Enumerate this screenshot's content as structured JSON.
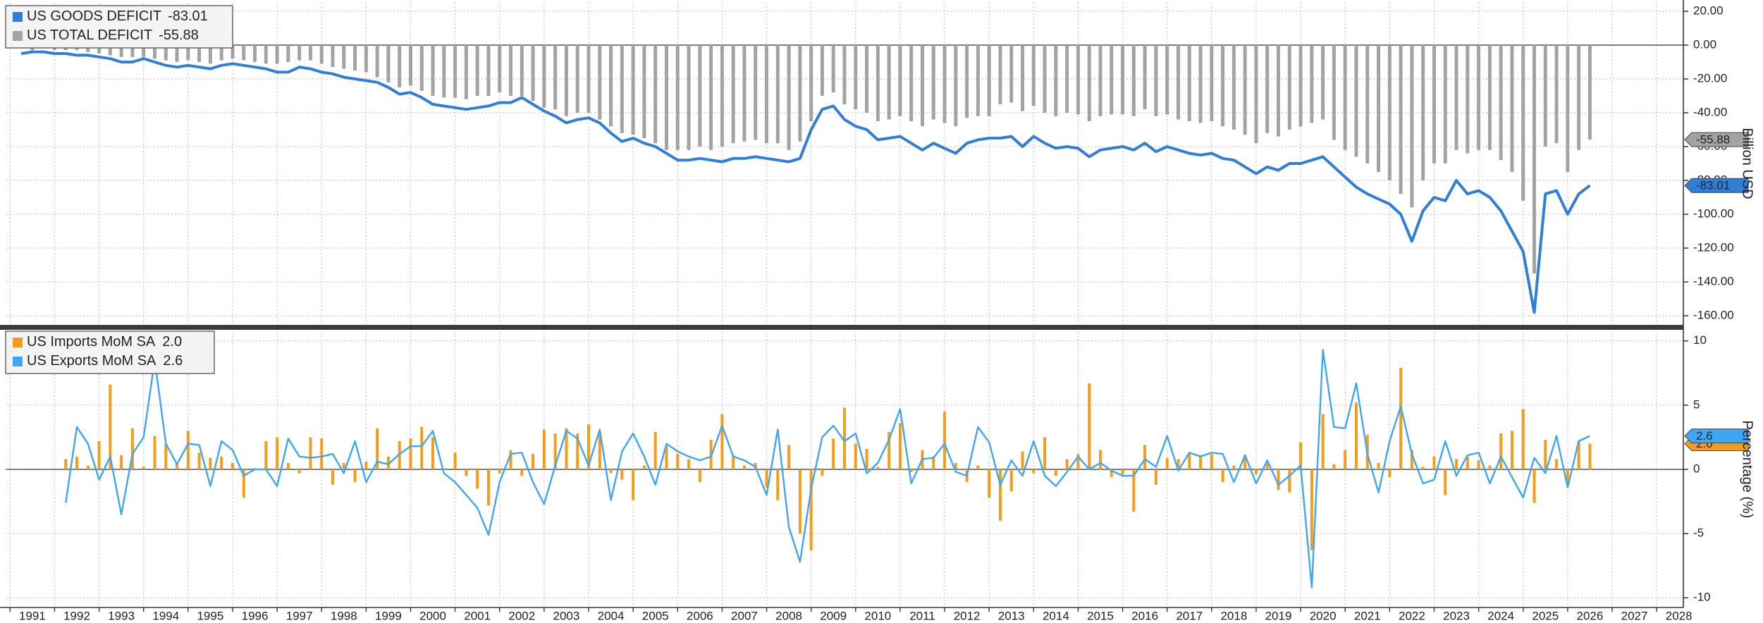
{
  "chart_data": [
    {
      "type": "combo",
      "ylabel": "Billion USD",
      "ylim": [
        -165,
        25
      ],
      "yticks": [
        {
          "value": 20,
          "label": "20.00"
        },
        {
          "value": 0,
          "label": "0.00"
        },
        {
          "value": -20,
          "label": "-20.00"
        },
        {
          "value": -40,
          "label": "-40.00"
        },
        {
          "value": -60,
          "label": "-60.00"
        },
        {
          "value": -80,
          "label": "-80.00"
        },
        {
          "value": -100,
          "label": "-100.00"
        },
        {
          "value": -120,
          "label": "-120.00"
        },
        {
          "value": -140,
          "label": "-140.00"
        },
        {
          "value": -160,
          "label": "-160.00"
        }
      ],
      "grid": true,
      "series": [
        {
          "name": "US TOTAL DEFICIT",
          "type": "bar",
          "color": "#a3a3a3",
          "values": [
            -2,
            -3,
            -2,
            -3,
            -3,
            -3,
            -4,
            -5,
            -6,
            -7,
            -7,
            -7,
            -8,
            -9,
            -10,
            -9,
            -10,
            -11,
            -9,
            -8,
            -9,
            -10,
            -11,
            -11,
            -10,
            -9,
            -9,
            -11,
            -13,
            -14,
            -15,
            -16,
            -19,
            -22,
            -25,
            -24,
            -27,
            -30,
            -31,
            -31,
            -32,
            -30,
            -30,
            -28,
            -30,
            -30,
            -33,
            -37,
            -38,
            -42,
            -40,
            -40,
            -44,
            -48,
            -52,
            -53,
            -55,
            -58,
            -62,
            -62,
            -62,
            -60,
            -62,
            -60,
            -58,
            -57,
            -56,
            -58,
            -58,
            -62,
            -57,
            -45,
            -30,
            -28,
            -35,
            -38,
            -40,
            -45,
            -44,
            -42,
            -45,
            -48,
            -44,
            -46,
            -48,
            -43,
            -42,
            -42,
            -35,
            -34,
            -39,
            -36,
            -40,
            -42,
            -40,
            -41,
            -45,
            -42,
            -41,
            -41,
            -42,
            -38,
            -42,
            -41,
            -44,
            -45,
            -46,
            -45,
            -48,
            -50,
            -53,
            -58,
            -52,
            -54,
            -50,
            -48,
            -46,
            -44,
            -56,
            -62,
            -66,
            -70,
            -75,
            -80,
            -88,
            -96,
            -80,
            -70,
            -70,
            -62,
            -64,
            -62,
            -62,
            -68,
            -75,
            -92,
            -135,
            -60,
            -58,
            -75,
            -62,
            -55.88
          ]
        },
        {
          "name": "US GOODS DEFICIT",
          "type": "line",
          "color": "#2f7fd6",
          "values": [
            -5,
            -4,
            -4,
            -5,
            -5,
            -6,
            -6,
            -7,
            -8,
            -10,
            -10,
            -8,
            -10,
            -12,
            -13,
            -12,
            -13,
            -14,
            -12,
            -11,
            -12,
            -13,
            -14,
            -16,
            -16,
            -13,
            -14,
            -16,
            -17,
            -19,
            -20,
            -21,
            -22,
            -25,
            -29,
            -28,
            -31,
            -35,
            -36,
            -37,
            -38,
            -37,
            -36,
            -34,
            -34,
            -31,
            -35,
            -39,
            -42,
            -46,
            -44,
            -43,
            -46,
            -52,
            -57,
            -55,
            -58,
            -60,
            -64,
            -68,
            -68,
            -67,
            -68,
            -69,
            -67,
            -67,
            -66,
            -67,
            -68,
            -69,
            -67,
            -50,
            -38,
            -36,
            -44,
            -48,
            -50,
            -56,
            -55,
            -54,
            -58,
            -62,
            -58,
            -61,
            -64,
            -58,
            -56,
            -55,
            -55,
            -54,
            -60,
            -54,
            -58,
            -61,
            -60,
            -61,
            -66,
            -62,
            -61,
            -60,
            -62,
            -58,
            -63,
            -60,
            -62,
            -64,
            -65,
            -64,
            -67,
            -68,
            -72,
            -76,
            -72,
            -74,
            -70,
            -70,
            -68,
            -66,
            -72,
            -78,
            -84,
            -88,
            -91,
            -94,
            -100,
            -116,
            -98,
            -90,
            -92,
            -80,
            -88,
            -86,
            -90,
            -98,
            -110,
            -122,
            -158,
            -88,
            -86,
            -100,
            -88,
            -83.01
          ]
        }
      ]
    },
    {
      "type": "combo",
      "ylabel": "Percentage (%)",
      "ylim": [
        -10.7,
        10.7
      ],
      "yticks": [
        10,
        5,
        0,
        -5,
        -10
      ],
      "grid": true,
      "xlim": [
        1990.9,
        2028.6
      ],
      "xticks": [
        1991,
        1992,
        1993,
        1994,
        1995,
        1996,
        1997,
        1998,
        1999,
        2000,
        2001,
        2002,
        2003,
        2004,
        2005,
        2006,
        2007,
        2008,
        2009,
        2010,
        2011,
        2012,
        2013,
        2014,
        2015,
        2016,
        2017,
        2018,
        2019,
        2020,
        2021,
        2022,
        2023,
        2024,
        2025,
        2026,
        2027,
        2028
      ],
      "x": [
        1991.25,
        1991.5,
        1991.75,
        1992,
        1992.25,
        1992.5,
        1992.75,
        1993,
        1993.25,
        1993.5,
        1993.75,
        1994,
        1994.25,
        1994.5,
        1994.75,
        1995,
        1995.25,
        1995.5,
        1995.75,
        1996,
        1996.25,
        1996.5,
        1996.75,
        1997,
        1997.25,
        1997.5,
        1997.75,
        1998,
        1998.25,
        1998.5,
        1998.75,
        1999,
        1999.25,
        1999.5,
        1999.75,
        2000,
        2000.25,
        2000.5,
        2000.75,
        2001,
        2001.25,
        2001.5,
        2001.75,
        2002,
        2002.25,
        2002.5,
        2002.75,
        2003,
        2003.25,
        2003.5,
        2003.75,
        2004,
        2004.25,
        2004.5,
        2004.75,
        2005,
        2005.25,
        2005.5,
        2005.75,
        2006,
        2006.25,
        2006.5,
        2006.75,
        2007,
        2007.25,
        2007.5,
        2007.75,
        2008,
        2008.25,
        2008.5,
        2008.75,
        2009,
        2009.25,
        2009.5,
        2009.75,
        2010,
        2010.25,
        2010.5,
        2010.75,
        2011,
        2011.25,
        2011.5,
        2011.75,
        2012,
        2012.25,
        2012.5,
        2012.75,
        2013,
        2013.25,
        2013.5,
        2013.75,
        2014,
        2014.25,
        2014.5,
        2014.75,
        2015,
        2015.25,
        2015.5,
        2015.75,
        2016,
        2016.25,
        2016.5,
        2016.75,
        2017,
        2017.25,
        2017.5,
        2017.75,
        2018,
        2018.25,
        2018.5,
        2018.75,
        2019,
        2019.25,
        2019.5,
        2019.75,
        2020,
        2020.25,
        2020.5,
        2020.75,
        2021,
        2021.25,
        2021.5,
        2021.75,
        2022,
        2022.25,
        2022.5,
        2022.75,
        2023,
        2023.25,
        2023.5,
        2023.75,
        2024,
        2024.25,
        2024.5,
        2024.75,
        2025,
        2025.25,
        2025.5,
        2025.75,
        2026,
        2026.25,
        2026.5
      ],
      "series": [
        {
          "name": "US Imports MoM SA",
          "type": "bar",
          "color": "#f59c1a",
          "values": [
            null,
            null,
            null,
            null,
            0.8,
            1.0,
            0.3,
            2.2,
            6.6,
            1.1,
            3.2,
            0.2,
            2.6,
            2.0,
            0.5,
            3.0,
            1.3,
            0.9,
            1.0,
            0.5,
            -2.2,
            0.1,
            2.2,
            2.5,
            0.5,
            -0.3,
            2.5,
            2.4,
            -1.2,
            0.5,
            -1.0,
            0.6,
            3.2,
            1.0,
            2.2,
            2.4,
            3.3,
            2.5,
            0.0,
            1.3,
            -0.5,
            -1.5,
            -2.8,
            -0.3,
            1.5,
            -0.5,
            1.2,
            3.1,
            2.8,
            3.2,
            2.8,
            3.5,
            2.8,
            -0.3,
            -0.8,
            -2.4,
            0.3,
            2.9,
            1.8,
            1.2,
            0.8,
            -1.0,
            2.3,
            4.3,
            1.1,
            0.3,
            0.5,
            -1.4,
            -2.4,
            1.9,
            -5.0,
            -6.3,
            -0.5,
            2.4,
            4.8,
            2.0,
            1.6,
            0.2,
            2.9,
            3.6,
            -0.2,
            1.5,
            1.0,
            4.5,
            0.5,
            -1.0,
            0.3,
            -2.2,
            -4.0,
            -1.7,
            1.4,
            -0.3,
            2.5,
            -0.5,
            0.8,
            1.2,
            6.7,
            1.5,
            -0.6,
            -0.4,
            -3.3,
            1.9,
            -1.2,
            0.9,
            0.8,
            1.2,
            1.1,
            1.2,
            -1.0,
            0.3,
            1.1,
            -0.4,
            0.5,
            -1.6,
            -1.8,
            2.1,
            -6.3,
            4.3,
            0.4,
            1.5,
            5.2,
            2.7,
            0.5,
            -0.6,
            7.9,
            1.5,
            0.2,
            1.0,
            -2.0,
            0.8,
            1.0,
            0.7,
            0.3,
            2.8,
            3.0,
            4.7,
            -2.6,
            2.3,
            0.8,
            -1.2,
            2.2,
            2.0
          ],
          "value_labels": [
            null,
            null,
            null,
            null,
            null,
            null,
            null,
            null,
            null,
            null,
            null,
            null,
            null,
            null,
            null,
            null,
            null,
            null,
            null,
            null,
            null,
            null,
            null,
            null,
            null,
            null,
            null,
            null,
            null,
            null,
            null,
            null,
            null,
            null,
            null,
            null,
            null,
            null,
            null,
            null,
            null,
            null,
            null,
            null,
            null,
            null,
            null,
            null,
            null,
            null,
            null,
            null,
            null,
            null,
            null,
            null,
            null,
            null,
            null,
            null,
            null,
            null,
            null,
            null,
            null,
            null,
            null,
            null,
            null,
            null,
            null,
            null,
            null,
            null,
            null,
            null,
            null,
            null,
            null,
            null,
            null,
            null,
            null,
            null,
            null,
            null,
            null,
            null,
            null,
            null,
            null,
            null,
            null,
            null,
            null,
            null,
            null,
            null,
            null,
            null,
            null,
            null,
            null,
            null,
            null,
            null,
            null,
            null,
            null,
            null,
            null,
            null,
            null,
            null,
            null,
            null,
            null,
            null,
            null,
            null,
            null,
            null,
            null,
            null,
            null,
            null,
            null,
            null,
            null,
            null,
            null,
            null,
            null,
            null,
            null,
            null,
            null,
            null,
            null,
            null,
            null,
            "2.0"
          ]
        },
        {
          "name": "US Exports MoM SA",
          "type": "line",
          "color": "#3ea6f2",
          "values": [
            null,
            null,
            null,
            null,
            -2.6,
            3.3,
            2.0,
            -0.8,
            1.0,
            -3.5,
            1.2,
            2.5,
            8.5,
            2.0,
            0.4,
            2.0,
            1.9,
            -1.3,
            2.2,
            1.5,
            -0.5,
            0.0,
            0.0,
            -1.3,
            2.4,
            1.0,
            0.9,
            1.0,
            1.2,
            -0.3,
            2.2,
            -1.0,
            0.6,
            0.4,
            1.2,
            1.8,
            1.8,
            3.0,
            -0.3,
            -1.0,
            -2.0,
            -3.0,
            -5.1,
            -1.0,
            1.2,
            1.3,
            -1.0,
            -2.7,
            0.3,
            3.0,
            2.4,
            0.3,
            3.1,
            -2.4,
            1.4,
            2.8,
            1.0,
            -1.2,
            2.0,
            1.4,
            1.0,
            0.7,
            1.0,
            3.4,
            1.0,
            0.7,
            0.2,
            -2.0,
            3.1,
            -4.5,
            -7.2,
            -1.5,
            2.5,
            3.4,
            2.2,
            2.8,
            -0.3,
            0.5,
            2.3,
            4.7,
            -1.1,
            0.8,
            0.9,
            2.0,
            -0.2,
            -0.5,
            3.3,
            2.1,
            -1.2,
            0.7,
            -0.5,
            2.2,
            -0.5,
            -1.3,
            -0.2,
            1.0,
            0.0,
            0.5,
            -0.1,
            -0.5,
            -0.5,
            0.8,
            0.2,
            2.6,
            -0.1,
            1.3,
            1.0,
            1.3,
            1.2,
            -1.0,
            1.1,
            -1.1,
            0.7,
            -1.2,
            -0.5,
            0.3,
            -9.2,
            9.3,
            3.3,
            3.2,
            6.7,
            1.2,
            -1.8,
            2.2,
            4.9,
            1.2,
            -1.1,
            -0.8,
            2.2,
            -0.5,
            1.1,
            1.3,
            -1.1,
            1.0,
            -0.6,
            -2.2,
            0.9,
            -0.3,
            2.6,
            -1.4,
            2.2,
            2.6
          ]
        }
      ]
    }
  ]
}
